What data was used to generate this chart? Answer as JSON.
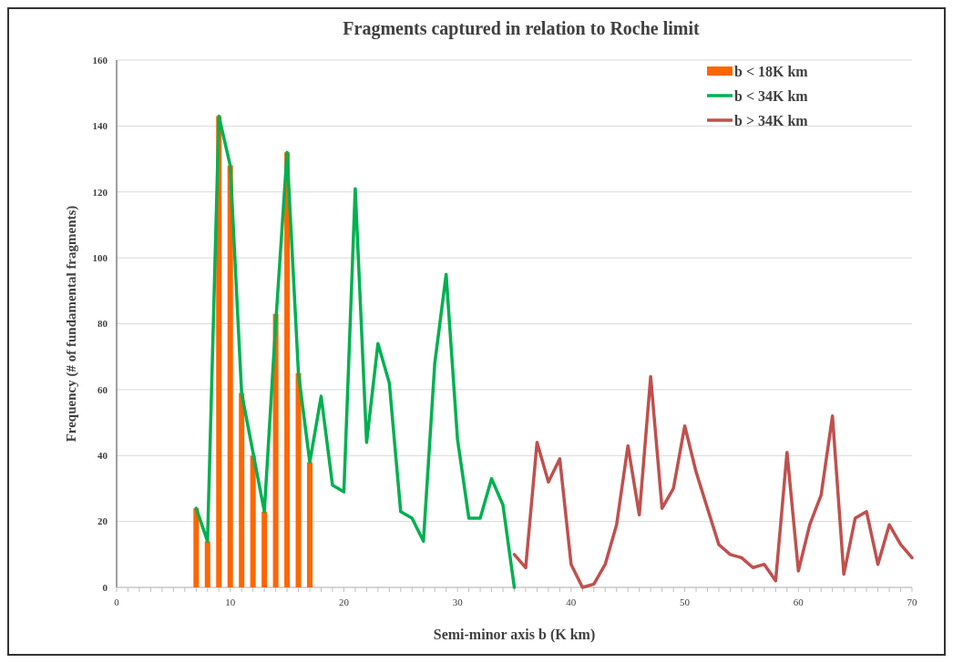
{
  "chart_data": {
    "type": "line",
    "title": "Fragments captured in relation to Roche limit",
    "xlabel": "Semi-minor  axis b (K km)",
    "ylabel": "Frequency  (# of fundamental  fragments)",
    "xlim": [
      0,
      70
    ],
    "xticks": [
      0,
      10,
      20,
      30,
      40,
      50,
      60,
      70
    ],
    "ylim": [
      0,
      160
    ],
    "yticks": [
      0,
      20,
      40,
      60,
      80,
      100,
      120,
      140,
      160
    ],
    "grid": "y",
    "legend": "top right",
    "series": [
      {
        "name": "b < 18K km",
        "type": "bar",
        "color": "#ff6600",
        "x": [
          7,
          8,
          9,
          10,
          11,
          12,
          13,
          14,
          15,
          16,
          17
        ],
        "values": [
          24,
          14,
          143,
          128,
          59,
          40,
          23,
          83,
          132,
          65,
          38
        ]
      },
      {
        "name": "b < 34K km",
        "color": "#00b050",
        "x": [
          7,
          8,
          9,
          10,
          11,
          12,
          13,
          14,
          15,
          16,
          17,
          18,
          19,
          20,
          21,
          22,
          23,
          24,
          25,
          26,
          27,
          28,
          29,
          30,
          31,
          32,
          33,
          34,
          35
        ],
        "values": [
          24,
          14,
          143,
          128,
          59,
          41,
          23,
          80,
          132,
          65,
          38,
          58,
          31,
          29,
          121,
          44,
          74,
          62,
          23,
          21,
          14,
          68,
          95,
          45,
          21,
          21,
          33,
          25,
          0
        ]
      },
      {
        "name": "b > 34K km",
        "color": "#c0504d",
        "x": [
          35,
          36,
          37,
          38,
          39,
          40,
          41,
          42,
          43,
          44,
          45,
          46,
          47,
          48,
          49,
          50,
          51,
          52,
          53,
          54,
          55,
          56,
          57,
          58,
          59,
          60,
          61,
          62,
          63,
          64,
          65,
          66,
          67,
          68,
          69,
          70
        ],
        "values": [
          10,
          6,
          44,
          32,
          39,
          7,
          0,
          1,
          7,
          19,
          43,
          22,
          64,
          24,
          30,
          49,
          35,
          24,
          13,
          10,
          9,
          6,
          7,
          2,
          41,
          5,
          19,
          28,
          52,
          4,
          21,
          23,
          7,
          19,
          13,
          9
        ]
      }
    ]
  }
}
